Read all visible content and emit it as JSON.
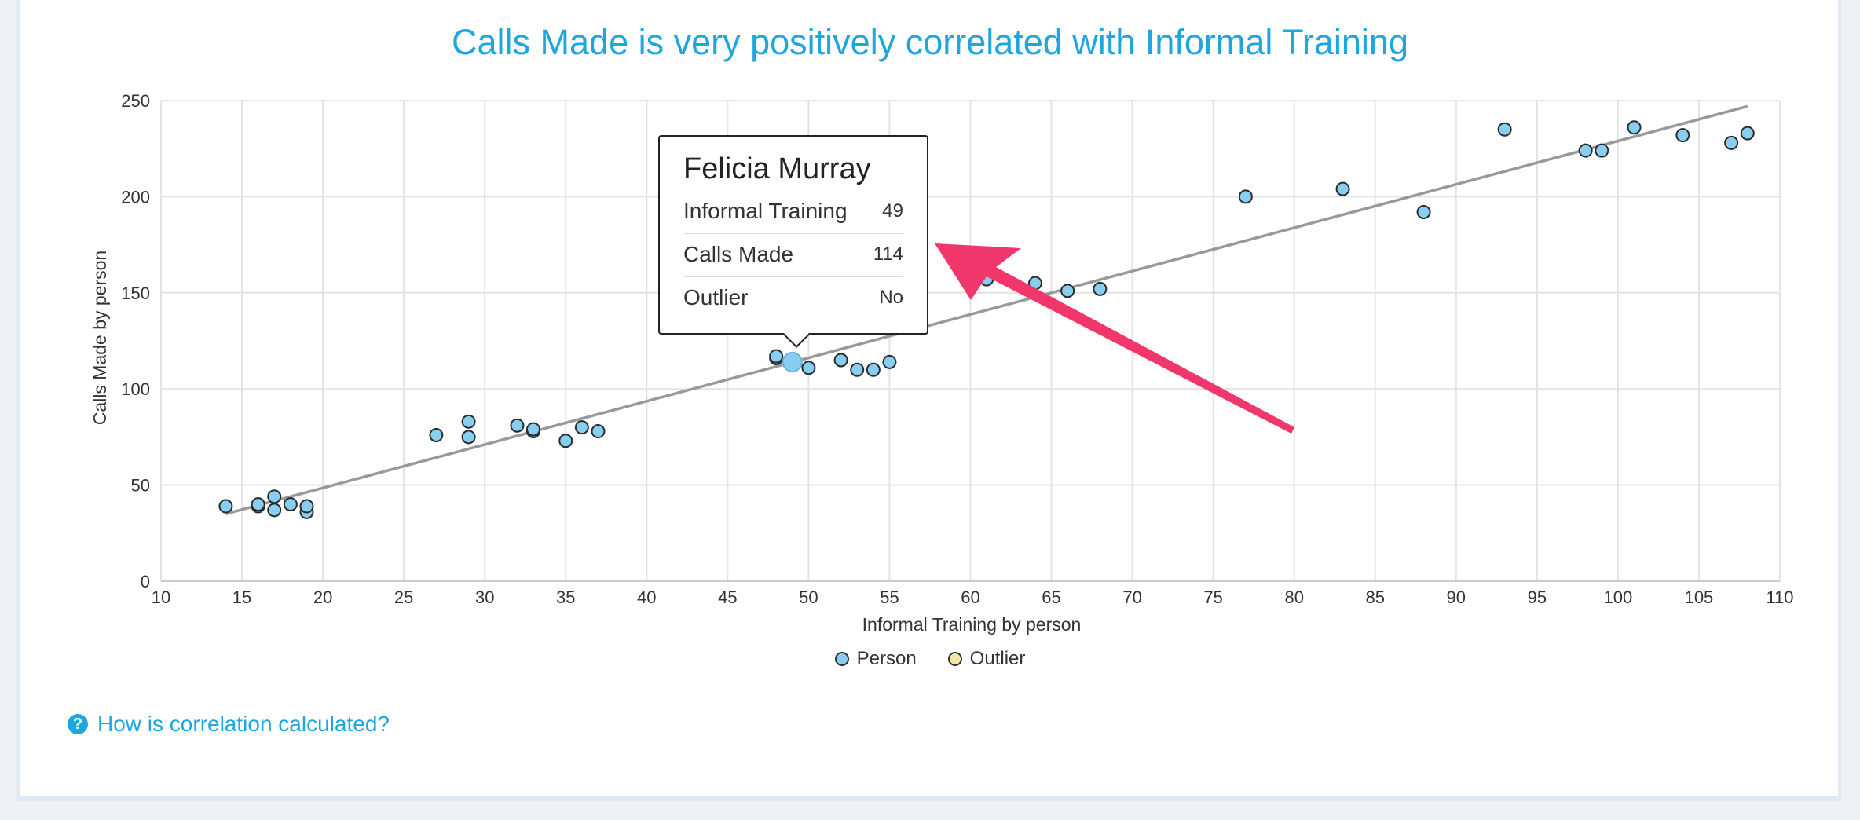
{
  "chart_data": {
    "type": "scatter",
    "title": "Calls Made is very positively correlated with Informal Training",
    "xlabel": "Informal Training by person",
    "ylabel": "Calls Made by person",
    "xlim": [
      10,
      110
    ],
    "ylim": [
      0,
      250
    ],
    "x_ticks": [
      10,
      15,
      20,
      25,
      30,
      35,
      40,
      45,
      50,
      55,
      60,
      65,
      70,
      75,
      80,
      85,
      90,
      95,
      100,
      105,
      110
    ],
    "y_ticks": [
      0,
      50,
      100,
      150,
      200,
      250
    ],
    "grid": true,
    "legend_position": "bottom",
    "series": [
      {
        "name": "Person",
        "color": "#87cef0",
        "points": [
          [
            14,
            39
          ],
          [
            16,
            39
          ],
          [
            16,
            40
          ],
          [
            17,
            44
          ],
          [
            17,
            37
          ],
          [
            18,
            40
          ],
          [
            19,
            36
          ],
          [
            19,
            39
          ],
          [
            27,
            76
          ],
          [
            29,
            83
          ],
          [
            29,
            75
          ],
          [
            32,
            81
          ],
          [
            33,
            78
          ],
          [
            33,
            79
          ],
          [
            35,
            73
          ],
          [
            36,
            80
          ],
          [
            37,
            78
          ],
          [
            48,
            116
          ],
          [
            48,
            117
          ],
          [
            49,
            114
          ],
          [
            50,
            111
          ],
          [
            52,
            115
          ],
          [
            53,
            110
          ],
          [
            54,
            110
          ],
          [
            55,
            114
          ],
          [
            61,
            157
          ],
          [
            64,
            155
          ],
          [
            66,
            151
          ],
          [
            68,
            152
          ],
          [
            77,
            200
          ],
          [
            83,
            204
          ],
          [
            88,
            192
          ],
          [
            93,
            235
          ],
          [
            98,
            224
          ],
          [
            99,
            224
          ],
          [
            101,
            236
          ],
          [
            104,
            232
          ],
          [
            107,
            228
          ],
          [
            108,
            233
          ]
        ]
      },
      {
        "name": "Outlier",
        "color": "#f3e6a3",
        "points": []
      }
    ],
    "trendline": {
      "from": [
        14,
        35
      ],
      "to": [
        108,
        247
      ],
      "color": "#999999"
    },
    "highlight": {
      "x": 49,
      "y": 114
    }
  },
  "tooltip": {
    "name": "Felicia Murray",
    "rows": [
      {
        "label": "Informal Training",
        "value": "49"
      },
      {
        "label": "Calls Made",
        "value": "114"
      },
      {
        "label": "Outlier",
        "value": "No"
      }
    ]
  },
  "legend": {
    "person_label": "Person",
    "outlier_label": "Outlier"
  },
  "help_link": {
    "label": "How is correlation calculated?",
    "icon": "question-circle-icon"
  },
  "annotation": {
    "arrow_color": "#f0366b"
  }
}
